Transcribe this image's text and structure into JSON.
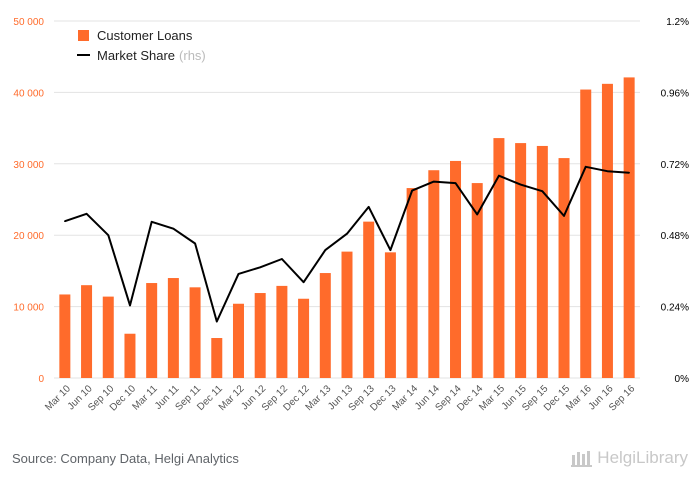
{
  "chart_data": {
    "type": "bar+line",
    "categories": [
      "Mar 10",
      "Jun 10",
      "Sep 10",
      "Dec 10",
      "Mar 11",
      "Jun 11",
      "Sep 11",
      "Dec 11",
      "Mar 12",
      "Jun 12",
      "Sep 12",
      "Dec 12",
      "Mar 13",
      "Jun 13",
      "Sep 13",
      "Dec 13",
      "Mar 14",
      "Jun 14",
      "Sep 14",
      "Dec 14",
      "Mar 15",
      "Jun 15",
      "Sep 15",
      "Dec 15",
      "Mar 16",
      "Jun 16",
      "Sep 16"
    ],
    "series": [
      {
        "name": "Customer Loans",
        "type": "bar",
        "axis": "left",
        "color": "#ff6b2b",
        "values": [
          11700,
          13000,
          11400,
          6200,
          13300,
          14000,
          12700,
          5600,
          10400,
          11900,
          12900,
          11100,
          14700,
          17700,
          21900,
          17600,
          26600,
          29100,
          30400,
          27300,
          33600,
          32900,
          32500,
          30800,
          40400,
          41200,
          42100
        ]
      },
      {
        "name": "Market Share",
        "type": "line",
        "axis": "right",
        "color": "#000000",
        "values": [
          0.527,
          0.552,
          0.48,
          0.244,
          0.525,
          0.502,
          0.452,
          0.19,
          0.35,
          0.372,
          0.4,
          0.322,
          0.43,
          0.485,
          0.575,
          0.43,
          0.63,
          0.66,
          0.655,
          0.55,
          0.68,
          0.65,
          0.628,
          0.545,
          0.71,
          0.695,
          0.69
        ]
      }
    ],
    "legend": {
      "position": "top-left",
      "items": [
        {
          "label": "Customer Loans",
          "note": ""
        },
        {
          "label": "Market Share",
          "note": "(rhs)"
        }
      ]
    },
    "y_left": {
      "ticks": [
        "0",
        "10 000",
        "20 000",
        "30 000",
        "40 000",
        "50 000"
      ],
      "range": [
        0,
        50000
      ],
      "tick_color": "#ff6b2b"
    },
    "y_right": {
      "ticks": [
        "0%",
        "0.24%",
        "0.48%",
        "0.72%",
        "0.96%",
        "1.2%"
      ],
      "range": [
        0,
        1.2
      ]
    },
    "grid": true
  },
  "footer": {
    "source": "Source: Company Data, Helgi Analytics",
    "brand": "HelgiLibrary"
  }
}
